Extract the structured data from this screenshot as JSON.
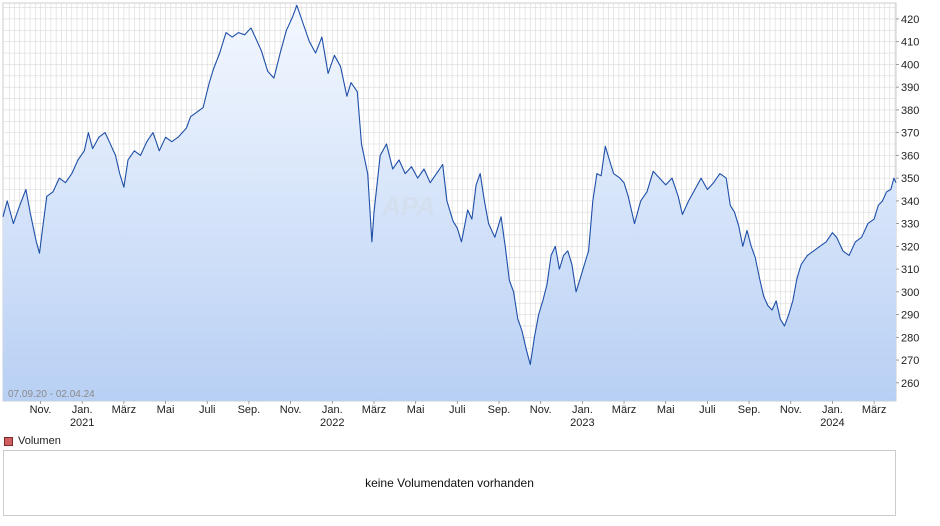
{
  "chart_data": {
    "type": "area",
    "date_range_label": "07.09.20 - 02.04.24",
    "watermark": "APA",
    "y_ticks": [
      260,
      270,
      280,
      290,
      300,
      310,
      320,
      330,
      340,
      350,
      360,
      370,
      380,
      390,
      400,
      410,
      420
    ],
    "ylim": [
      252,
      427
    ],
    "xlim": [
      0,
      42.85
    ],
    "grid": true,
    "month_ticks": [
      {
        "x": 1.8,
        "label": "Nov."
      },
      {
        "x": 3.8,
        "label": "Jan."
      },
      {
        "x": 5.8,
        "label": "März"
      },
      {
        "x": 7.8,
        "label": "Mai"
      },
      {
        "x": 9.8,
        "label": "Juli"
      },
      {
        "x": 11.8,
        "label": "Sep."
      },
      {
        "x": 13.8,
        "label": "Nov."
      },
      {
        "x": 15.8,
        "label": "Jan."
      },
      {
        "x": 17.8,
        "label": "März"
      },
      {
        "x": 19.8,
        "label": "Mai"
      },
      {
        "x": 21.8,
        "label": "Juli"
      },
      {
        "x": 23.8,
        "label": "Sep."
      },
      {
        "x": 25.8,
        "label": "Nov."
      },
      {
        "x": 27.8,
        "label": "Jan."
      },
      {
        "x": 29.8,
        "label": "März"
      },
      {
        "x": 31.8,
        "label": "Mai"
      },
      {
        "x": 33.8,
        "label": "Juli"
      },
      {
        "x": 35.8,
        "label": "Sep."
      },
      {
        "x": 37.8,
        "label": "Nov."
      },
      {
        "x": 39.8,
        "label": "Jan."
      },
      {
        "x": 41.8,
        "label": "März"
      }
    ],
    "year_labels": [
      {
        "x": 3.8,
        "label": "2021"
      },
      {
        "x": 15.8,
        "label": "2022"
      },
      {
        "x": 27.8,
        "label": "2023"
      },
      {
        "x": 39.8,
        "label": "2024"
      }
    ],
    "series": [
      {
        "values": [
          [
            0.0,
            333
          ],
          [
            0.2,
            340
          ],
          [
            0.5,
            330
          ],
          [
            0.8,
            338
          ],
          [
            1.1,
            345
          ],
          [
            1.3,
            335
          ],
          [
            1.6,
            322
          ],
          [
            1.75,
            317
          ],
          [
            1.9,
            328
          ],
          [
            2.1,
            342
          ],
          [
            2.4,
            344
          ],
          [
            2.7,
            350
          ],
          [
            3.0,
            348
          ],
          [
            3.3,
            352
          ],
          [
            3.6,
            358
          ],
          [
            3.9,
            362
          ],
          [
            4.1,
            370
          ],
          [
            4.3,
            363
          ],
          [
            4.6,
            368
          ],
          [
            4.9,
            370
          ],
          [
            5.1,
            366
          ],
          [
            5.4,
            360
          ],
          [
            5.6,
            352
          ],
          [
            5.8,
            346
          ],
          [
            6.0,
            358
          ],
          [
            6.3,
            362
          ],
          [
            6.6,
            360
          ],
          [
            6.9,
            366
          ],
          [
            7.2,
            370
          ],
          [
            7.5,
            362
          ],
          [
            7.8,
            368
          ],
          [
            8.1,
            366
          ],
          [
            8.4,
            368
          ],
          [
            8.8,
            372
          ],
          [
            9.0,
            377
          ],
          [
            9.3,
            379
          ],
          [
            9.6,
            381
          ],
          [
            9.9,
            392
          ],
          [
            10.1,
            398
          ],
          [
            10.4,
            405
          ],
          [
            10.7,
            414
          ],
          [
            11.0,
            412
          ],
          [
            11.3,
            414
          ],
          [
            11.6,
            413
          ],
          [
            11.9,
            416
          ],
          [
            12.1,
            412
          ],
          [
            12.4,
            406
          ],
          [
            12.7,
            397
          ],
          [
            13.0,
            394
          ],
          [
            13.3,
            405
          ],
          [
            13.6,
            415
          ],
          [
            13.9,
            421
          ],
          [
            14.1,
            426
          ],
          [
            14.4,
            418
          ],
          [
            14.7,
            410
          ],
          [
            15.0,
            405
          ],
          [
            15.3,
            412
          ],
          [
            15.6,
            396
          ],
          [
            15.9,
            404
          ],
          [
            16.2,
            399
          ],
          [
            16.5,
            386
          ],
          [
            16.7,
            392
          ],
          [
            17.0,
            388
          ],
          [
            17.2,
            365
          ],
          [
            17.5,
            352
          ],
          [
            17.7,
            322
          ],
          [
            17.8,
            335
          ],
          [
            18.1,
            360
          ],
          [
            18.4,
            365
          ],
          [
            18.7,
            354
          ],
          [
            19.0,
            358
          ],
          [
            19.3,
            352
          ],
          [
            19.6,
            355
          ],
          [
            19.9,
            350
          ],
          [
            20.2,
            354
          ],
          [
            20.5,
            348
          ],
          [
            20.8,
            352
          ],
          [
            21.1,
            356
          ],
          [
            21.3,
            340
          ],
          [
            21.6,
            331
          ],
          [
            21.8,
            328
          ],
          [
            22.0,
            322
          ],
          [
            22.3,
            336
          ],
          [
            22.5,
            332
          ],
          [
            22.7,
            347
          ],
          [
            22.9,
            352
          ],
          [
            23.1,
            340
          ],
          [
            23.3,
            330
          ],
          [
            23.6,
            324
          ],
          [
            23.9,
            333
          ],
          [
            24.1,
            320
          ],
          [
            24.3,
            305
          ],
          [
            24.5,
            300
          ],
          [
            24.7,
            288
          ],
          [
            24.9,
            283
          ],
          [
            25.1,
            275
          ],
          [
            25.3,
            268
          ],
          [
            25.5,
            280
          ],
          [
            25.7,
            290
          ],
          [
            25.9,
            296
          ],
          [
            26.1,
            303
          ],
          [
            26.3,
            316
          ],
          [
            26.5,
            320
          ],
          [
            26.7,
            310
          ],
          [
            26.9,
            316
          ],
          [
            27.1,
            318
          ],
          [
            27.3,
            312
          ],
          [
            27.5,
            300
          ],
          [
            27.7,
            306
          ],
          [
            27.9,
            312
          ],
          [
            28.1,
            318
          ],
          [
            28.3,
            340
          ],
          [
            28.5,
            352
          ],
          [
            28.7,
            351
          ],
          [
            28.9,
            364
          ],
          [
            29.1,
            358
          ],
          [
            29.3,
            352
          ],
          [
            29.6,
            350
          ],
          [
            29.8,
            348
          ],
          [
            30.0,
            342
          ],
          [
            30.3,
            330
          ],
          [
            30.6,
            340
          ],
          [
            30.9,
            344
          ],
          [
            31.2,
            353
          ],
          [
            31.5,
            350
          ],
          [
            31.8,
            347
          ],
          [
            32.1,
            350
          ],
          [
            32.4,
            342
          ],
          [
            32.6,
            334
          ],
          [
            32.9,
            340
          ],
          [
            33.2,
            345
          ],
          [
            33.5,
            350
          ],
          [
            33.8,
            345
          ],
          [
            34.1,
            348
          ],
          [
            34.4,
            352
          ],
          [
            34.7,
            350
          ],
          [
            34.9,
            338
          ],
          [
            35.1,
            335
          ],
          [
            35.3,
            329
          ],
          [
            35.5,
            320
          ],
          [
            35.7,
            327
          ],
          [
            35.9,
            320
          ],
          [
            36.1,
            315
          ],
          [
            36.3,
            306
          ],
          [
            36.5,
            298
          ],
          [
            36.7,
            294
          ],
          [
            36.9,
            292
          ],
          [
            37.1,
            296
          ],
          [
            37.3,
            288
          ],
          [
            37.5,
            285
          ],
          [
            37.7,
            290
          ],
          [
            37.9,
            296
          ],
          [
            38.1,
            306
          ],
          [
            38.3,
            312
          ],
          [
            38.6,
            316
          ],
          [
            38.9,
            318
          ],
          [
            39.2,
            320
          ],
          [
            39.5,
            322
          ],
          [
            39.8,
            326
          ],
          [
            40.0,
            324
          ],
          [
            40.3,
            318
          ],
          [
            40.6,
            316
          ],
          [
            40.9,
            322
          ],
          [
            41.2,
            324
          ],
          [
            41.5,
            330
          ],
          [
            41.8,
            332
          ],
          [
            42.0,
            338
          ],
          [
            42.2,
            340
          ],
          [
            42.4,
            344
          ],
          [
            42.6,
            345
          ],
          [
            42.75,
            350
          ],
          [
            42.85,
            348
          ]
        ]
      }
    ]
  },
  "volume": {
    "legend_label": "Volumen",
    "empty_message": "keine Volumendaten vorhanden"
  },
  "colors": {
    "line": "#1e4fa8",
    "area_top": "#f4f8ff",
    "area_bottom": "#b8d0f4",
    "grid": "#d9d9d9"
  }
}
